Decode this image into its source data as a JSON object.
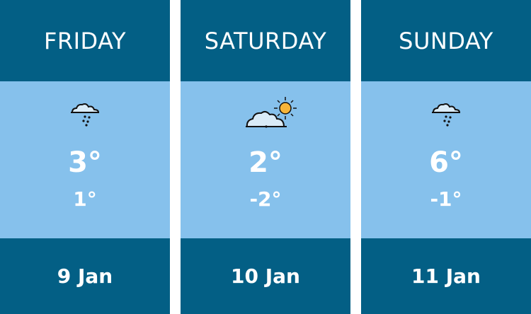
{
  "days": [
    {
      "name": "FRIDAY",
      "icon": "cloud-rain-icon",
      "high": "3°",
      "low": "1°",
      "date": "9 Jan"
    },
    {
      "name": "SATURDAY",
      "icon": "partly-sunny-icon",
      "high": "2°",
      "low": "-2°",
      "date": "10 Jan"
    },
    {
      "name": "SUNDAY",
      "icon": "cloud-rain-icon",
      "high": "6°",
      "low": "-1°",
      "date": "11 Jan"
    }
  ],
  "colors": {
    "header": "#035f85",
    "body": "#86c1ec",
    "text": "#ffffff",
    "sun": "#f6b53a"
  }
}
